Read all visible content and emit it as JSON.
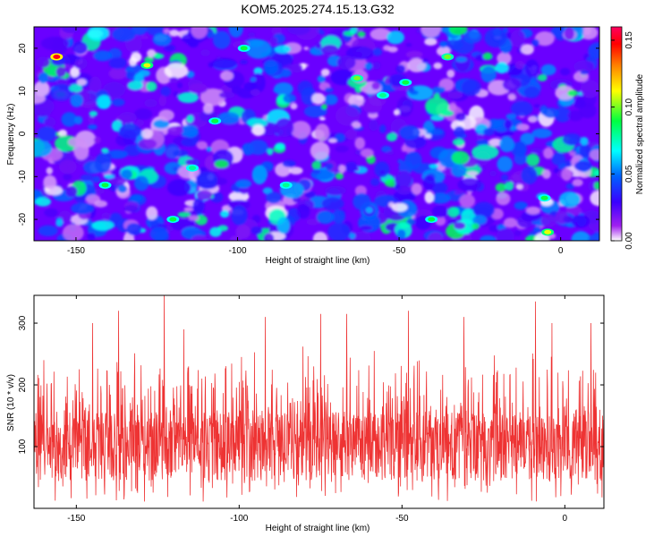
{
  "title": "KOM5.2025.274.15.13.G32",
  "chart_data": [
    {
      "type": "heatmap",
      "name": "spectrogram",
      "xlabel": "Height of straight line (km)",
      "ylabel": "Frequency (Hz)",
      "xlim": [
        -163,
        12
      ],
      "ylim": [
        -25,
        25
      ],
      "xticks": [
        -150,
        -100,
        -50,
        0
      ],
      "yticks": [
        -20,
        -10,
        0,
        10,
        20
      ],
      "colorbar": {
        "label": "Normalized spectral amplitude",
        "range": [
          0,
          0.16
        ],
        "ticks": [
          "0.00",
          "0.05",
          "0.10",
          "0.15"
        ],
        "tick_values": [
          0,
          0.05,
          0.1,
          0.15
        ],
        "colors": [
          "#ffffff",
          "#a020f0",
          "#3a00ff",
          "#0060ff",
          "#00ffff",
          "#00ff40",
          "#ffff00",
          "#ff8000",
          "#ff0000",
          "#ff0060"
        ]
      },
      "hot_spots": [
        {
          "x": -156,
          "y": 18,
          "value": 0.15
        },
        {
          "x": -128,
          "y": 16,
          "value": 0.11
        },
        {
          "x": -107,
          "y": 3,
          "value": 0.09
        },
        {
          "x": -98,
          "y": 20,
          "value": 0.09
        },
        {
          "x": -63,
          "y": 13,
          "value": 0.1
        },
        {
          "x": -48,
          "y": 12,
          "value": 0.09
        },
        {
          "x": -35,
          "y": 18,
          "value": 0.1
        },
        {
          "x": -4,
          "y": -23,
          "value": 0.11
        },
        {
          "x": -114,
          "y": -8,
          "value": 0.08
        },
        {
          "x": -85,
          "y": -12,
          "value": 0.08
        },
        {
          "x": -141,
          "y": -12,
          "value": 0.09
        },
        {
          "x": -40,
          "y": -20,
          "value": 0.09
        },
        {
          "x": -5,
          "y": -15,
          "value": 0.09
        },
        {
          "x": -120,
          "y": -20,
          "value": 0.09
        },
        {
          "x": -55,
          "y": 9,
          "value": 0.08
        }
      ]
    },
    {
      "type": "line",
      "name": "snr",
      "xlabel": "Height of straight line (km)",
      "ylabel": "SNR (10 * v/v)",
      "xlim": [
        -163,
        12
      ],
      "ylim": [
        0,
        345
      ],
      "xticks": [
        -150,
        -100,
        -50,
        0
      ],
      "yticks": [
        100,
        200,
        300
      ],
      "color": "#ee3333",
      "series": [
        {
          "name": "SNR",
          "summary": {
            "typical_low": 40,
            "typical_high": 200,
            "mean": 115
          },
          "peaks": [
            {
              "x": -123,
              "y": 345
            },
            {
              "x": -9,
              "y": 335
            },
            {
              "x": -48,
              "y": 320
            },
            {
              "x": -67,
              "y": 315
            },
            {
              "x": -75,
              "y": 315
            },
            {
              "x": -92,
              "y": 310
            },
            {
              "x": -137,
              "y": 320
            },
            {
              "x": -145,
              "y": 300
            },
            {
              "x": -117,
              "y": 290
            },
            {
              "x": -31,
              "y": 310
            },
            {
              "x": -4,
              "y": 300
            },
            {
              "x": 8,
              "y": 300
            },
            {
              "x": -160,
              "y": 240
            }
          ]
        }
      ]
    }
  ]
}
